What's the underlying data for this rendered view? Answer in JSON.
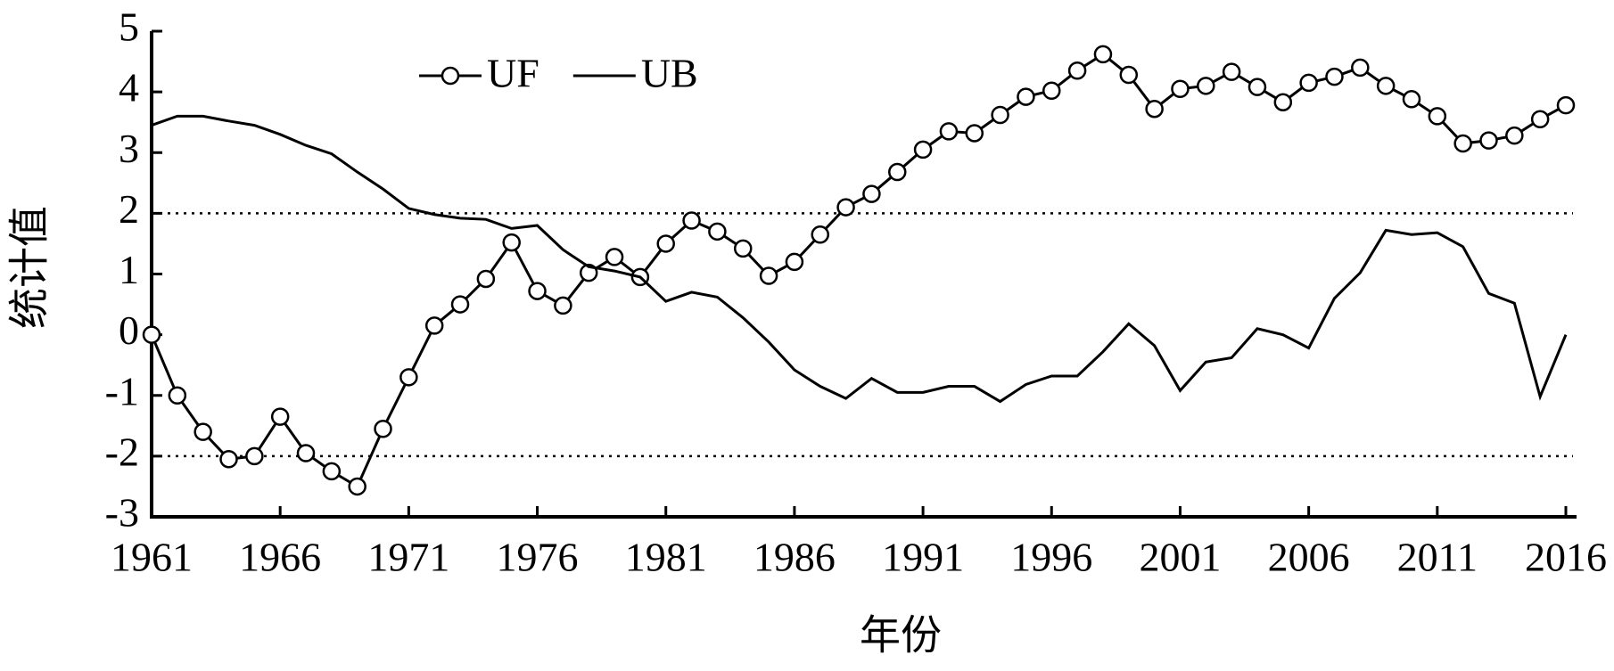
{
  "chart_data": {
    "type": "line",
    "x_label": "年份",
    "y_label": "统计值",
    "x": [
      1961,
      1962,
      1963,
      1964,
      1965,
      1966,
      1967,
      1968,
      1969,
      1970,
      1971,
      1972,
      1973,
      1974,
      1975,
      1976,
      1977,
      1978,
      1979,
      1980,
      1981,
      1982,
      1983,
      1984,
      1985,
      1986,
      1987,
      1988,
      1989,
      1990,
      1991,
      1992,
      1993,
      1994,
      1995,
      1996,
      1997,
      1998,
      1999,
      2000,
      2001,
      2002,
      2003,
      2004,
      2005,
      2006,
      2007,
      2008,
      2009,
      2010,
      2011,
      2012,
      2013,
      2014,
      2015,
      2016
    ],
    "series": [
      {
        "name": "UF",
        "color": "#000000",
        "marker": "circle",
        "values": [
          0,
          -1,
          -1.6,
          -2.05,
          -2,
          -1.35,
          -1.95,
          -2.25,
          -2.5,
          -1.55,
          -0.7,
          0.15,
          0.5,
          0.92,
          1.52,
          0.72,
          0.48,
          1.02,
          1.28,
          0.95,
          1.5,
          1.88,
          1.7,
          1.42,
          0.97,
          1.2,
          1.65,
          2.1,
          2.32,
          2.68,
          3.05,
          3.35,
          3.32,
          3.62,
          3.92,
          4.02,
          4.35,
          4.62,
          4.28,
          3.72,
          4.05,
          4.1,
          4.33,
          4.08,
          3.83,
          4.15,
          4.25,
          4.4,
          4.1,
          3.88,
          3.6,
          3.15,
          3.2,
          3.28,
          3.55,
          3.78
        ]
      },
      {
        "name": "UB",
        "color": "#000000",
        "marker": "none",
        "values": [
          3.45,
          3.6,
          3.6,
          3.52,
          3.45,
          3.3,
          3.12,
          2.98,
          2.68,
          2.4,
          2.08,
          1.98,
          1.92,
          1.9,
          1.75,
          1.8,
          1.4,
          1.12,
          1.05,
          0.95,
          0.55,
          0.7,
          0.62,
          0.28,
          -0.12,
          -0.58,
          -0.85,
          -1.05,
          -0.72,
          -0.95,
          -0.95,
          -0.85,
          -0.85,
          -1.1,
          -0.82,
          -0.68,
          -0.68,
          -0.28,
          0.18,
          -0.18,
          -0.92,
          -0.45,
          -0.38,
          0.1,
          0,
          -0.22,
          0.6,
          1.02,
          1.72,
          1.65,
          1.68,
          1.45,
          0.68,
          0.52,
          -1.02,
          0
        ]
      }
    ],
    "reference_lines": [
      2,
      -2
    ],
    "xlim": [
      1961,
      2016
    ],
    "xticks": [
      1961,
      1966,
      1971,
      1976,
      1981,
      1986,
      1991,
      1996,
      2001,
      2006,
      2011,
      2016
    ],
    "ylim": [
      -3,
      5
    ],
    "yticks": [
      -3,
      -2,
      -1,
      0,
      1,
      2,
      3,
      4,
      5
    ],
    "legend": "top-left",
    "grid": false
  }
}
